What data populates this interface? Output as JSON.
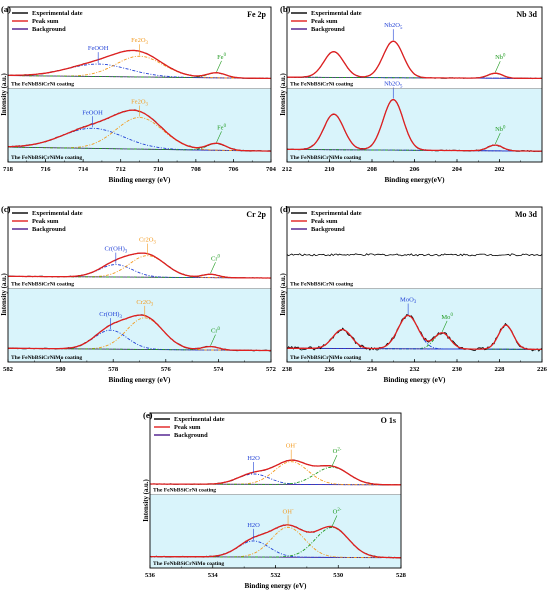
{
  "legend_labels": [
    "Experimental date",
    "Peak sum",
    "Background"
  ],
  "y_axis_label": "Intensity (a.u.)",
  "colors": {
    "experimental": "#000000",
    "peak_sum": "#e02020",
    "background": "#4b1a8c",
    "blue_peak": "#1f3fd6",
    "orange_peak": "#f39a1e",
    "green_peak": "#1f9a1f",
    "band": "#d9f4fb"
  },
  "chart_data": [
    {
      "panel": "(a)",
      "element": "Fe 2p",
      "type": "line",
      "xlabel": "Binding energy (eV)",
      "xlim": [
        718,
        704
      ],
      "xticks": [
        718,
        716,
        714,
        712,
        710,
        708,
        706,
        704
      ],
      "spectra": [
        {
          "sample": "The FeNbBSiCrNi coating",
          "baseline": [
            [
              718,
              0.12
            ],
            [
              704,
              0.05
            ]
          ],
          "peaks": [
            {
              "name": "FeOOH",
              "center": 713.2,
              "height": 0.3,
              "width": 2.6,
              "color": "blue"
            },
            {
              "name": "Fe2O3",
              "center": 711.0,
              "height": 0.5,
              "width": 2.0,
              "color": "orange"
            },
            {
              "name": "Fe0",
              "center": 706.9,
              "height": 0.12,
              "width": 0.8,
              "color": "green"
            }
          ]
        },
        {
          "sample": "The FeNbBSiCrNiMo coating",
          "baseline": [
            [
              718,
              0.12
            ],
            [
              704,
              0.05
            ]
          ],
          "peaks": [
            {
              "name": "FeOOH",
              "center": 713.5,
              "height": 0.35,
              "width": 2.6,
              "color": "blue"
            },
            {
              "name": "Fe2O3",
              "center": 711.0,
              "height": 0.55,
              "width": 2.0,
              "color": "orange"
            },
            {
              "name": "Fe0",
              "center": 706.9,
              "height": 0.12,
              "width": 0.8,
              "color": "green"
            }
          ]
        }
      ]
    },
    {
      "panel": "(b)",
      "element": "Nb 3d",
      "type": "line",
      "xlabel": "Binding energy(eV)",
      "xlim": [
        212,
        200
      ],
      "xticks": [
        212,
        210,
        208,
        206,
        204,
        202
      ],
      "spectra": [
        {
          "sample": "The FeNbBSiCrNi coating",
          "baseline": [
            [
              212,
              0.08
            ],
            [
              200,
              0.05
            ]
          ],
          "peaks": [
            {
              "name": "",
              "center": 209.8,
              "height": 0.62,
              "width": 0.75,
              "color": "blue"
            },
            {
              "name": "Nb2O5",
              "center": 207.0,
              "height": 0.88,
              "width": 0.75,
              "color": "blue"
            },
            {
              "name": "Nb0",
              "center": 202.2,
              "height": 0.12,
              "width": 0.55,
              "color": "green"
            }
          ]
        },
        {
          "sample": "The FeNbBSiCrNiMo coating",
          "baseline": [
            [
              212,
              0.08
            ],
            [
              200,
              0.05
            ]
          ],
          "peaks": [
            {
              "name": "",
              "center": 209.8,
              "height": 0.62,
              "width": 0.75,
              "color": "blue"
            },
            {
              "name": "Nb2O5",
              "center": 207.0,
              "height": 0.88,
              "width": 0.75,
              "color": "blue"
            },
            {
              "name": "Nb0",
              "center": 202.2,
              "height": 0.1,
              "width": 0.55,
              "color": "green"
            }
          ]
        }
      ]
    },
    {
      "panel": "(c)",
      "element": "Cr 2p",
      "type": "line",
      "xlabel": "Binding energy (eV)",
      "xlim": [
        582,
        572
      ],
      "xticks": [
        582,
        580,
        578,
        576,
        574,
        572
      ],
      "spectra": [
        {
          "sample": "The FeNbBSiCrNi coating",
          "baseline": [
            [
              582,
              0.1
            ],
            [
              572,
              0.06
            ]
          ],
          "peaks": [
            {
              "name": "Cr(OH)3",
              "center": 577.9,
              "height": 0.3,
              "width": 1.0,
              "color": "blue"
            },
            {
              "name": "Cr2O3",
              "center": 576.7,
              "height": 0.52,
              "width": 1.1,
              "color": "orange"
            },
            {
              "name": "Cr0",
              "center": 574.3,
              "height": 0.08,
              "width": 0.5,
              "color": "green"
            }
          ]
        },
        {
          "sample": "The FeNbBSiCrNiMo coating",
          "baseline": [
            [
              582,
              0.1
            ],
            [
              572,
              0.06
            ]
          ],
          "peaks": [
            {
              "name": "Cr(OH)3",
              "center": 578.1,
              "height": 0.33,
              "width": 1.0,
              "color": "blue"
            },
            {
              "name": "Cr2O3",
              "center": 576.8,
              "height": 0.55,
              "width": 1.1,
              "color": "orange"
            },
            {
              "name": "Cr0",
              "center": 574.3,
              "height": 0.06,
              "width": 0.5,
              "color": "green"
            }
          ]
        }
      ]
    },
    {
      "panel": "(d)",
      "element": "Mo 3d",
      "type": "line",
      "xlabel": "Binding energy (eV)",
      "xlim": [
        238,
        226
      ],
      "xticks": [
        238,
        236,
        234,
        232,
        230,
        228,
        226
      ],
      "spectra": [
        {
          "sample": "The FeNbBSiCrNi coating",
          "flat_level": 0.62,
          "peaks": []
        },
        {
          "sample": "The FeNbBSiCrNiMo coating",
          "baseline": [
            [
              238,
              0.1
            ],
            [
              226,
              0.08
            ]
          ],
          "peaks": [
            {
              "name": "",
              "center": 235.4,
              "height": 0.33,
              "width": 0.7,
              "color": "blue"
            },
            {
              "name": "MoO3",
              "center": 232.3,
              "height": 0.58,
              "width": 0.75,
              "color": "blue"
            },
            {
              "name": "Mo0",
              "center": 230.7,
              "height": 0.28,
              "width": 0.6,
              "color": "green"
            },
            {
              "name": "",
              "center": 227.7,
              "height": 0.42,
              "width": 0.55,
              "color": "blue"
            }
          ]
        }
      ]
    },
    {
      "panel": "(e)",
      "element": "O 1s",
      "type": "line",
      "xlabel": "Binding energy (eV)",
      "xlim": [
        536,
        528
      ],
      "xticks": [
        536,
        534,
        532,
        530,
        528
      ],
      "spectra": [
        {
          "sample": "The FeNbBSiCrNi coating",
          "baseline": [
            [
              536,
              0.06
            ],
            [
              528,
              0.04
            ]
          ],
          "peaks": [
            {
              "name": "H2O",
              "center": 532.7,
              "height": 0.25,
              "width": 0.8,
              "color": "blue"
            },
            {
              "name": "OH-",
              "center": 531.5,
              "height": 0.55,
              "width": 0.85,
              "color": "orange"
            },
            {
              "name": "O2-",
              "center": 530.2,
              "height": 0.42,
              "width": 0.85,
              "color": "green"
            }
          ]
        },
        {
          "sample": "The FeNbBSiCrNiMo coating",
          "baseline": [
            [
              536,
              0.06
            ],
            [
              528,
              0.04
            ]
          ],
          "peaks": [
            {
              "name": "H2O",
              "center": 532.7,
              "height": 0.28,
              "width": 0.8,
              "color": "blue"
            },
            {
              "name": "OH-",
              "center": 531.6,
              "height": 0.52,
              "width": 0.85,
              "color": "orange"
            },
            {
              "name": "O2-",
              "center": 530.2,
              "height": 0.52,
              "width": 0.85,
              "color": "green"
            }
          ]
        }
      ]
    }
  ]
}
